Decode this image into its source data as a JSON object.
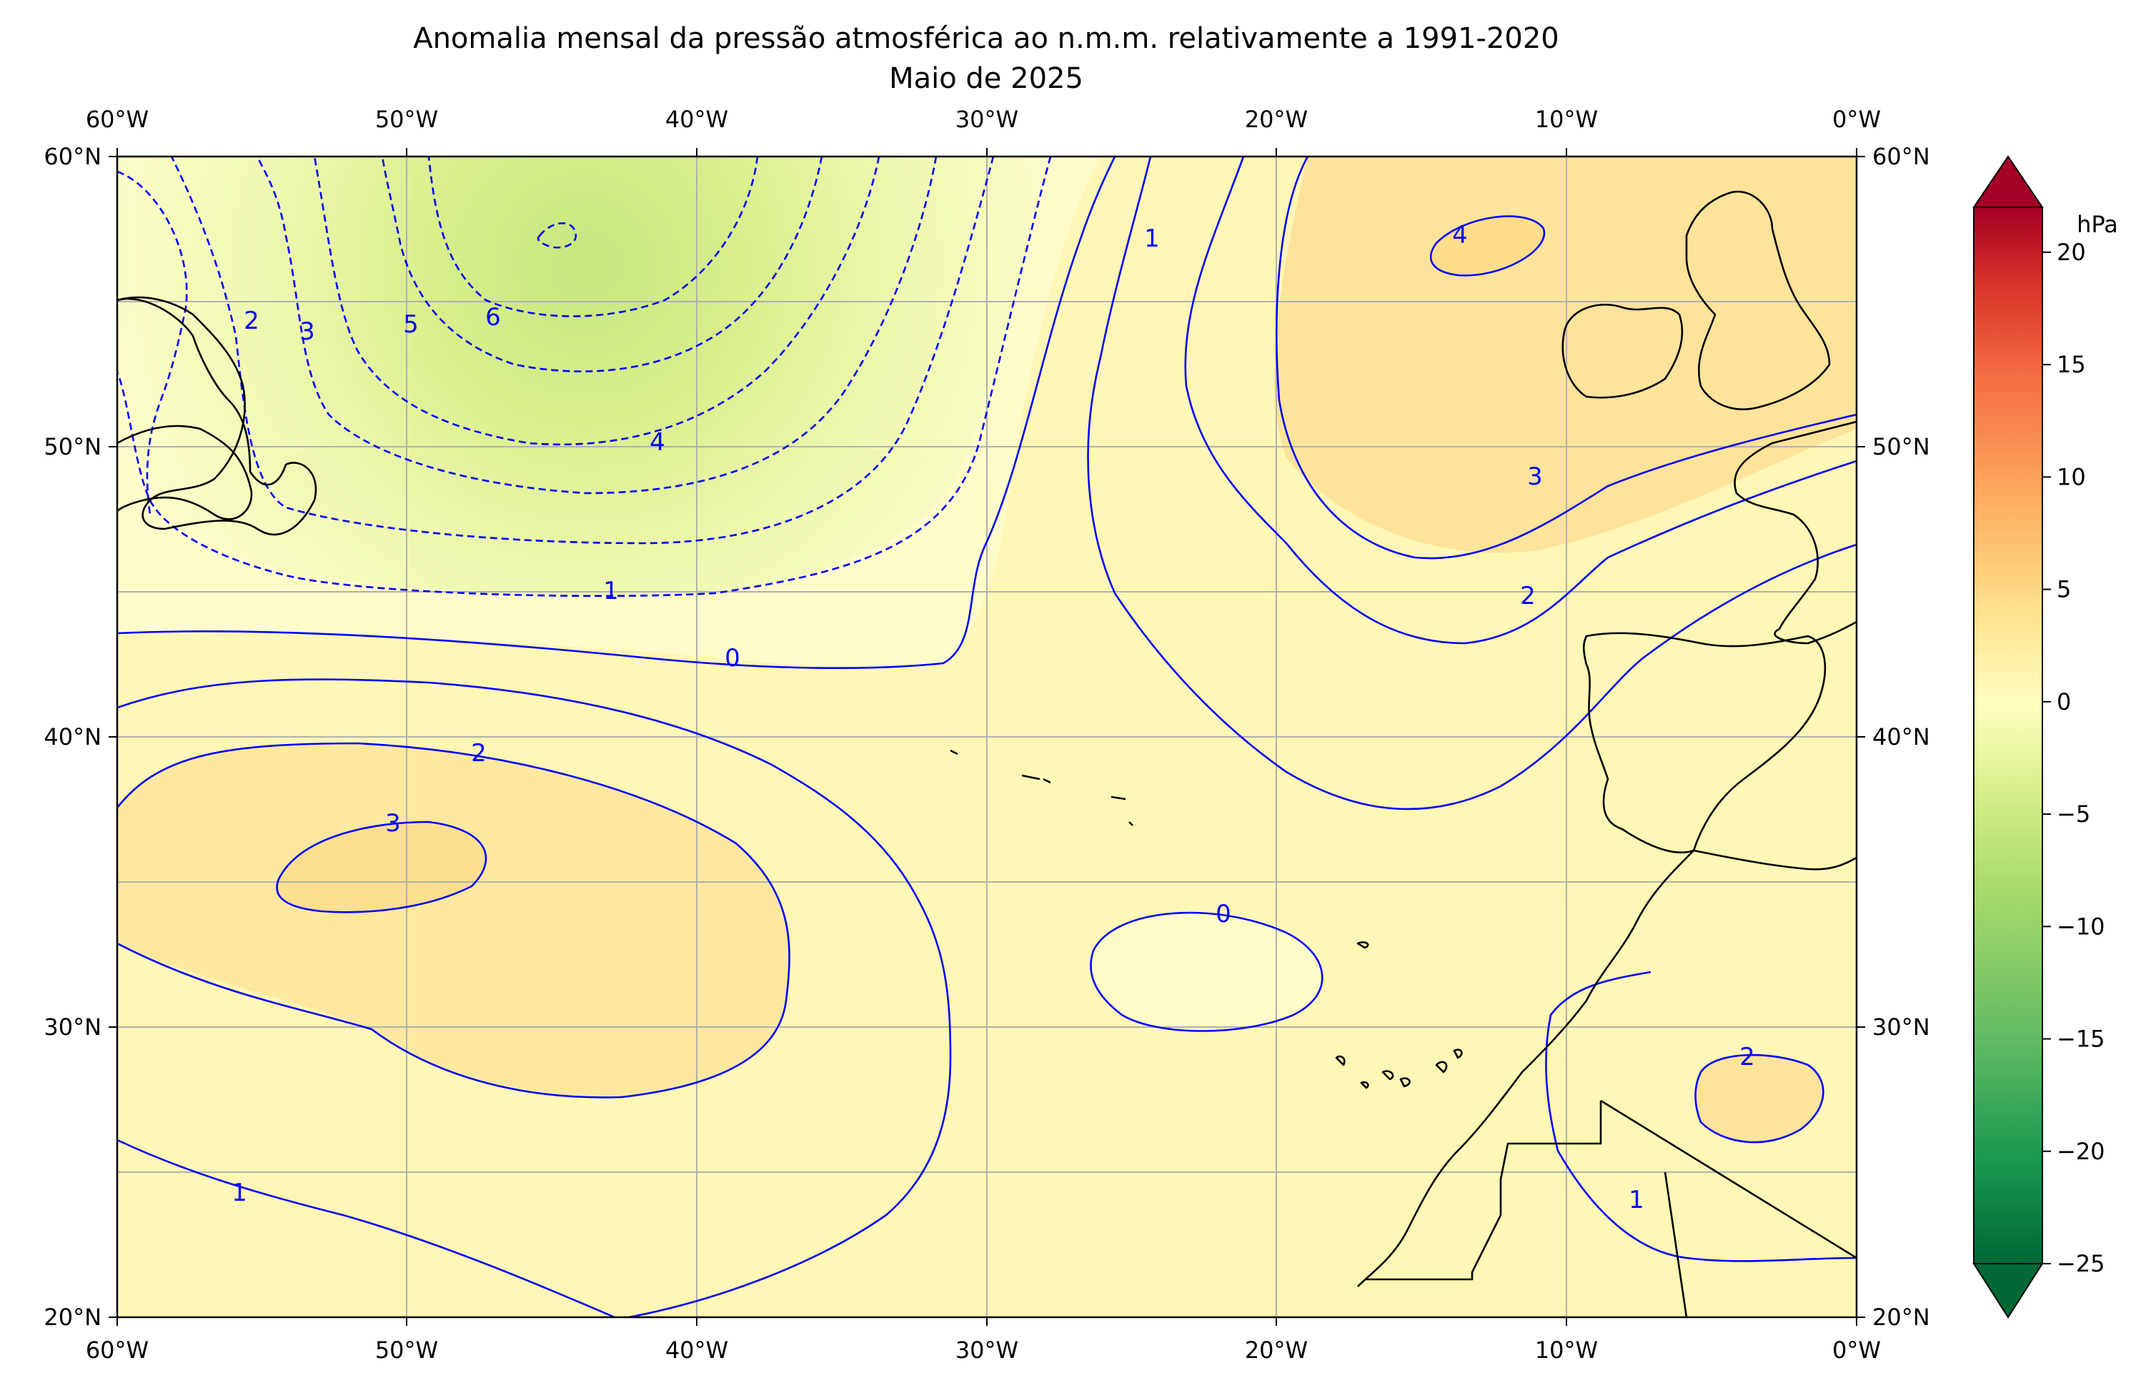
{
  "title": {
    "line1": "Anomalia mensal da pressão atmosférica ao n.m.m. relativamente a 1991-2020",
    "line2": "Maio de 2025"
  },
  "map": {
    "lon_labels": [
      "60°W",
      "50°W",
      "40°W",
      "30°W",
      "20°W",
      "10°W",
      "0°W"
    ],
    "lat_labels": [
      "60°N",
      "50°N",
      "40°N",
      "30°N",
      "20°N"
    ],
    "extent": {
      "lon": [
        -60,
        0
      ],
      "lat": [
        20,
        60
      ]
    },
    "gridlines": true,
    "coastline_color": "#000000",
    "contour_color": "#0000ff",
    "contour_labels": [
      {
        "id": "m6",
        "text": "6"
      },
      {
        "id": "m5",
        "text": "5"
      },
      {
        "id": "m4",
        "text": "4"
      },
      {
        "id": "m3",
        "text": "3"
      },
      {
        "id": "m2",
        "text": "2"
      },
      {
        "id": "m1",
        "text": "1"
      },
      {
        "id": "z0a",
        "text": "0"
      },
      {
        "id": "z0b",
        "text": "0"
      },
      {
        "id": "p1a",
        "text": "1"
      },
      {
        "id": "p1b",
        "text": "1"
      },
      {
        "id": "p1c",
        "text": "1"
      },
      {
        "id": "p2a",
        "text": "2"
      },
      {
        "id": "p2b",
        "text": "2"
      },
      {
        "id": "p2c",
        "text": "2"
      },
      {
        "id": "p3a",
        "text": "3"
      },
      {
        "id": "p3b",
        "text": "3"
      },
      {
        "id": "p4a",
        "text": "4"
      }
    ]
  },
  "colorbar": {
    "unit": "hPa",
    "ticks": [
      "20",
      "15",
      "10",
      "5",
      "0",
      "−5",
      "−10",
      "−15",
      "−20",
      "−25"
    ],
    "range": [
      -25,
      22
    ],
    "colormap": "RdYlGn_r",
    "extend": "both"
  }
}
